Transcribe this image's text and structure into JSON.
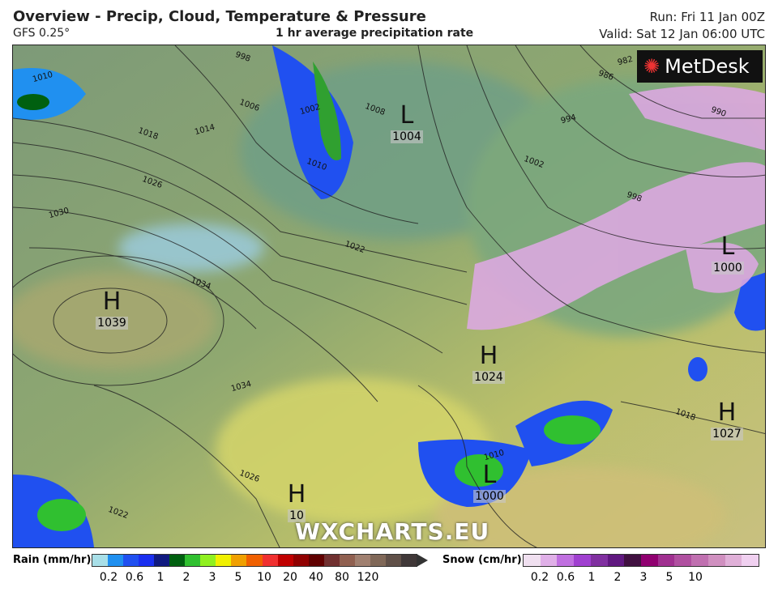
{
  "header": {
    "title": "Overview - Precip, Cloud, Temperature & Pressure",
    "model": "GFS 0.25°",
    "subtitle": "1 hr average precipitation rate",
    "run": "Run: Fri 11 Jan 00Z",
    "valid": "Valid: Sat 12 Jan 06:00 UTC"
  },
  "brand": {
    "logo": "MetDesk",
    "watermark": "WXCHARTS.EU"
  },
  "pressure_centres": [
    {
      "type": "H",
      "value": "1039"
    },
    {
      "type": "L",
      "value": "1004"
    },
    {
      "type": "L",
      "value": "1000"
    },
    {
      "type": "H",
      "value": "1024"
    },
    {
      "type": "H",
      "value": "1027"
    },
    {
      "type": "L",
      "value": "1000"
    },
    {
      "type": "H",
      "value": "10"
    }
  ],
  "isobar_labels": [
    "1010",
    "998",
    "1006",
    "1002",
    "1008",
    "1018",
    "1014",
    "1026",
    "1010",
    "1030",
    "1034",
    "1022",
    "982",
    "986",
    "990",
    "994",
    "1002",
    "998",
    "1034",
    "1026",
    "1022",
    "1010",
    "1018"
  ],
  "legend": {
    "rain": {
      "label": "Rain (mm/hr)",
      "ticks": [
        "0.2",
        "0.6",
        "1",
        "2",
        "3",
        "5",
        "10",
        "20",
        "40",
        "80",
        "120"
      ],
      "colors": [
        "#a8dfe8",
        "#2090f0",
        "#2050f0",
        "#1a2ff0",
        "#101a80",
        "#006010",
        "#30c030",
        "#90f020",
        "#f0f000",
        "#f0a000",
        "#f06000",
        "#f03030",
        "#c00000",
        "#900000",
        "#600000",
        "#703030",
        "#906050",
        "#a08070",
        "#806858",
        "#605048",
        "#403838"
      ]
    },
    "snow": {
      "label": "Snow (cm/hr)",
      "ticks": [
        "0.2",
        "0.6",
        "1",
        "2",
        "3",
        "5",
        "10"
      ],
      "colors": [
        "#f0e0f0",
        "#e0b0e8",
        "#c070e0",
        "#a040d0",
        "#8030a0",
        "#601880",
        "#401040",
        "#900070",
        "#a03090",
        "#b050a0",
        "#c070b0",
        "#d090c0",
        "#e0b0d8",
        "#f0d0f0"
      ]
    }
  }
}
